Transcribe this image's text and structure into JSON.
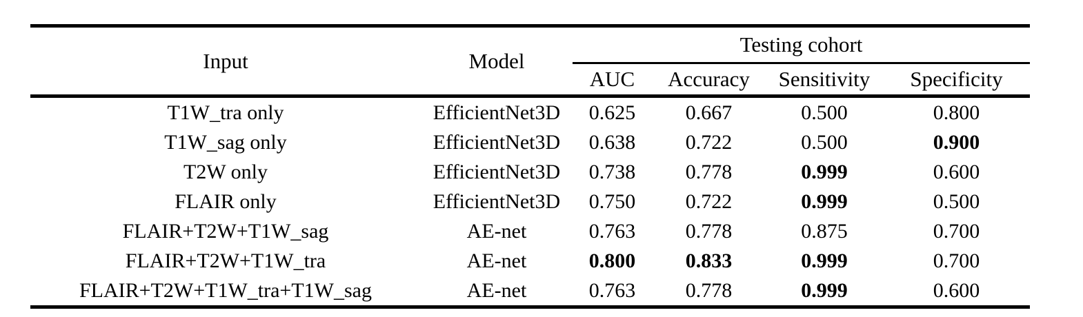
{
  "table": {
    "header": {
      "input_label": "Input",
      "model_label": "Model",
      "group_label": "Testing cohort",
      "metrics": [
        "AUC",
        "Accuracy",
        "Sensitivity",
        "Specificity"
      ]
    },
    "rows": [
      {
        "input": "T1W_tra only",
        "model": "EfficientNet3D",
        "values": [
          {
            "text": "0.625",
            "bold": false
          },
          {
            "text": "0.667",
            "bold": false
          },
          {
            "text": "0.500",
            "bold": false
          },
          {
            "text": "0.800",
            "bold": false
          }
        ]
      },
      {
        "input": "T1W_sag only",
        "model": "EfficientNet3D",
        "values": [
          {
            "text": "0.638",
            "bold": false
          },
          {
            "text": "0.722",
            "bold": false
          },
          {
            "text": "0.500",
            "bold": false
          },
          {
            "text": "0.900",
            "bold": true
          }
        ]
      },
      {
        "input": "T2W only",
        "model": "EfficientNet3D",
        "values": [
          {
            "text": "0.738",
            "bold": false
          },
          {
            "text": "0.778",
            "bold": false
          },
          {
            "text": "0.999",
            "bold": true
          },
          {
            "text": "0.600",
            "bold": false
          }
        ]
      },
      {
        "input": "FLAIR only",
        "model": "EfficientNet3D",
        "values": [
          {
            "text": "0.750",
            "bold": false
          },
          {
            "text": "0.722",
            "bold": false
          },
          {
            "text": "0.999",
            "bold": true
          },
          {
            "text": "0.500",
            "bold": false
          }
        ]
      },
      {
        "input": "FLAIR+T2W+T1W_sag",
        "model": "AE-net",
        "values": [
          {
            "text": "0.763",
            "bold": false
          },
          {
            "text": "0.778",
            "bold": false
          },
          {
            "text": "0.875",
            "bold": false
          },
          {
            "text": "0.700",
            "bold": false
          }
        ]
      },
      {
        "input": "FLAIR+T2W+T1W_tra",
        "model": "AE-net",
        "values": [
          {
            "text": "0.800",
            "bold": true
          },
          {
            "text": "0.833",
            "bold": true
          },
          {
            "text": "0.999",
            "bold": true
          },
          {
            "text": "0.700",
            "bold": false
          }
        ]
      },
      {
        "input": "FLAIR+T2W+T1W_tra+T1W_sag",
        "model": "AE-net",
        "values": [
          {
            "text": "0.763",
            "bold": false
          },
          {
            "text": "0.778",
            "bold": false
          },
          {
            "text": "0.999",
            "bold": true
          },
          {
            "text": "0.600",
            "bold": false
          }
        ]
      }
    ]
  },
  "colors": {
    "text": "#000000",
    "background": "#ffffff",
    "rule": "#000000"
  }
}
